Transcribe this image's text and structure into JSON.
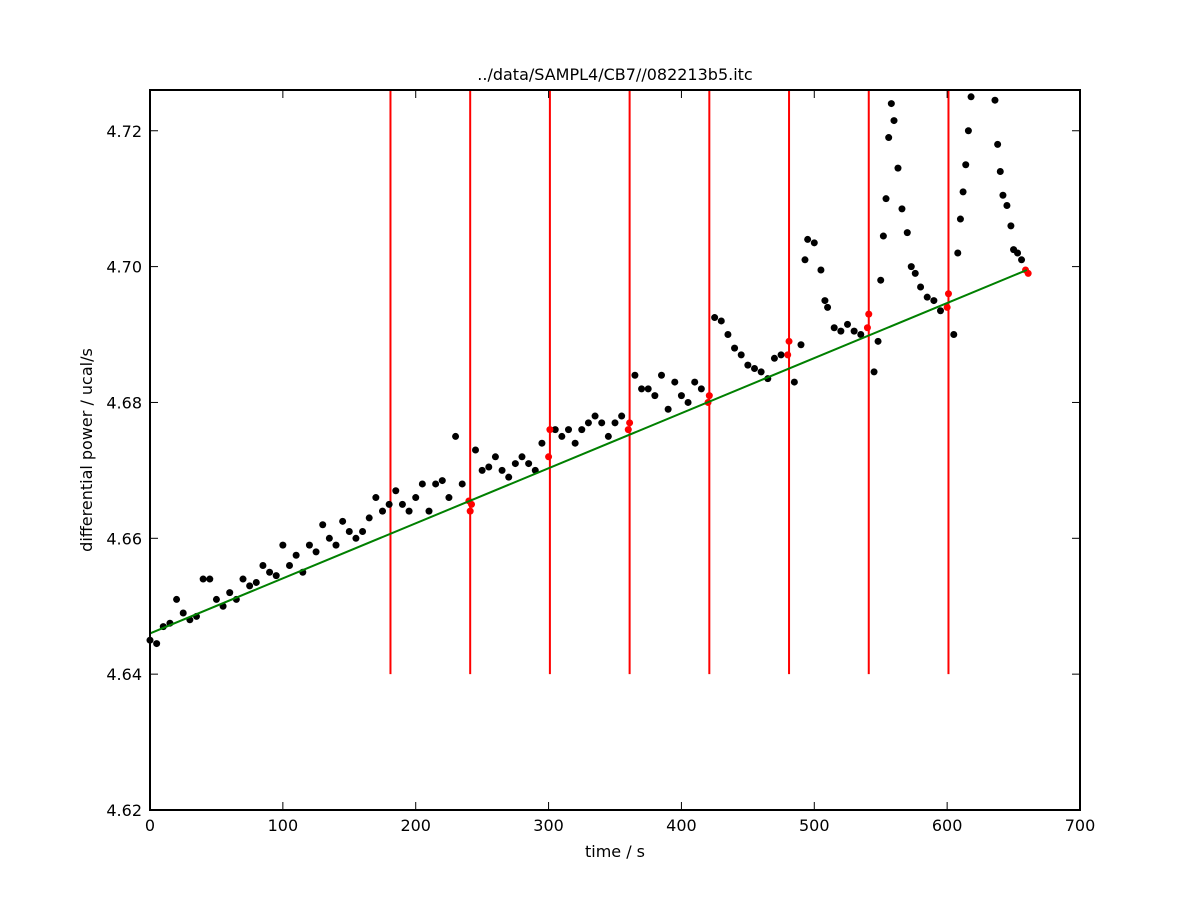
{
  "chart_data": {
    "type": "scatter",
    "title": "../data/SAMPL4/CB7//082213b5.itc",
    "xlabel": "time / s",
    "ylabel": "differential power / ucal/s",
    "xlim": [
      0,
      700
    ],
    "ylim": [
      4.62,
      4.726
    ],
    "xticks": [
      0,
      100,
      200,
      300,
      400,
      500,
      600,
      700
    ],
    "yticks": [
      4.62,
      4.64,
      4.66,
      4.68,
      {
        "value": 4.7,
        "label": "4.70"
      },
      4.72
    ],
    "vlines": {
      "color": "#ff0000",
      "x": [
        181,
        241,
        301,
        361,
        421,
        481,
        541,
        601
      ],
      "ymin": 4.64
    },
    "series": [
      {
        "style": "markers",
        "color": "#000000",
        "x": [
          0,
          5,
          10,
          15,
          20,
          25,
          30,
          35,
          40,
          45,
          50,
          55,
          60,
          65,
          70,
          75,
          80,
          85,
          90,
          95,
          100,
          105,
          110,
          115,
          120,
          125,
          130,
          135,
          140,
          145,
          150,
          155,
          160,
          165,
          170,
          175,
          180,
          185,
          190,
          195,
          200,
          205,
          210,
          215,
          220,
          225,
          230,
          235,
          245,
          250,
          255,
          260,
          265,
          270,
          275,
          280,
          285,
          290,
          295,
          305,
          310,
          315,
          320,
          325,
          330,
          335,
          340,
          345,
          350,
          355,
          365,
          370,
          375,
          380,
          385,
          390,
          395,
          400,
          405,
          410,
          415,
          425,
          430,
          435,
          440,
          445,
          450,
          455,
          460,
          465,
          470,
          475,
          485,
          490,
          493,
          495,
          500,
          505,
          508,
          510,
          515,
          520,
          525,
          530,
          535,
          545,
          548,
          550,
          552,
          554,
          556,
          558,
          560,
          563,
          566,
          570,
          573,
          576,
          580,
          585,
          590,
          595,
          605,
          608,
          610,
          612,
          614,
          616,
          618,
          636,
          638,
          640,
          642,
          645,
          648,
          650,
          653,
          656
        ],
        "values": [
          4.645,
          4.6445,
          4.647,
          4.6475,
          4.651,
          4.649,
          4.648,
          4.6485,
          4.654,
          4.654,
          4.651,
          4.65,
          4.652,
          4.651,
          4.654,
          4.653,
          4.6535,
          4.656,
          4.655,
          4.6545,
          4.659,
          4.656,
          4.6575,
          4.655,
          4.659,
          4.658,
          4.662,
          4.66,
          4.659,
          4.6625,
          4.661,
          4.66,
          4.661,
          4.663,
          4.666,
          4.664,
          4.665,
          4.667,
          4.665,
          4.664,
          4.666,
          4.668,
          4.664,
          4.668,
          4.6685,
          4.666,
          4.675,
          4.668,
          4.673,
          4.67,
          4.6705,
          4.672,
          4.67,
          4.669,
          4.671,
          4.672,
          4.671,
          4.67,
          4.674,
          4.676,
          4.675,
          4.676,
          4.674,
          4.676,
          4.677,
          4.678,
          4.677,
          4.675,
          4.677,
          4.678,
          4.684,
          4.682,
          4.682,
          4.681,
          4.684,
          4.679,
          4.683,
          4.681,
          4.68,
          4.683,
          4.682,
          4.6925,
          4.692,
          4.69,
          4.688,
          4.687,
          4.6855,
          4.685,
          4.6845,
          4.6835,
          4.6865,
          4.687,
          4.683,
          4.6885,
          4.701,
          4.704,
          4.7035,
          4.6995,
          4.695,
          4.694,
          4.691,
          4.6905,
          4.6915,
          4.6905,
          4.69,
          4.6845,
          4.689,
          4.698,
          4.7045,
          4.71,
          4.719,
          4.724,
          4.7215,
          4.7145,
          4.7085,
          4.705,
          4.7,
          4.699,
          4.697,
          4.6955,
          4.695,
          4.6935,
          4.69,
          4.702,
          4.707,
          4.711,
          4.715,
          4.72,
          4.725,
          4.7245,
          4.718,
          4.714,
          4.7105,
          4.709,
          4.706,
          4.7025,
          4.702,
          4.701
        ]
      },
      {
        "style": "markers",
        "color": "#ff0000",
        "x": [
          240,
          241,
          242,
          300,
          301,
          360,
          361,
          420,
          421,
          480,
          481,
          540,
          541,
          600,
          601,
          659,
          661
        ],
        "values": [
          4.6655,
          4.664,
          4.665,
          4.672,
          4.676,
          4.676,
          4.677,
          4.68,
          4.681,
          4.687,
          4.689,
          4.691,
          4.693,
          4.694,
          4.696,
          4.6995,
          4.699
        ]
      },
      {
        "style": "line",
        "color": "#008000",
        "x": [
          0,
          660
        ],
        "values": [
          4.646,
          4.6995
        ]
      }
    ]
  }
}
